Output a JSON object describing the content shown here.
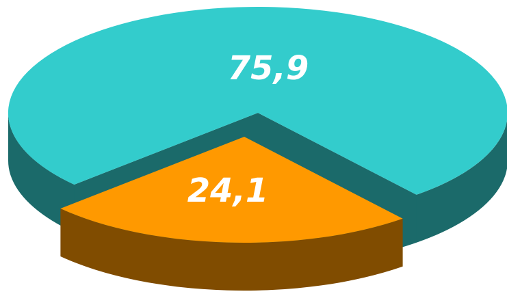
{
  "chart_data": {
    "type": "pie",
    "style": "3d-exploded",
    "slices": [
      {
        "label": "75,9",
        "value": 75.9,
        "color": "#33CCCC",
        "side_color": "#1B6A6A"
      },
      {
        "label": "24,1",
        "value": 24.1,
        "color": "#FF9900",
        "side_color": "#804C00"
      }
    ],
    "title": "",
    "legend": "none"
  }
}
